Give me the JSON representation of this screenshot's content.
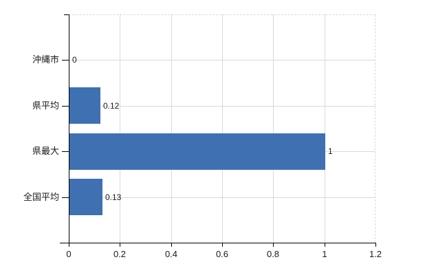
{
  "chart_data": {
    "type": "bar",
    "orientation": "horizontal",
    "title": "",
    "categories": [
      "沖縄市",
      "県平均",
      "県最大",
      "全国平均"
    ],
    "values": [
      0,
      0.12,
      1,
      0.13
    ],
    "value_labels": [
      "0",
      "0.12",
      "1",
      "0.13"
    ],
    "x_tick_labels": [
      "0",
      "0.2",
      "0.4",
      "0.6",
      "0.8",
      "1",
      "1.2"
    ],
    "x_tick_values": [
      0,
      0.2,
      0.4,
      0.6,
      0.8,
      1,
      1.2
    ],
    "xlim": [
      0,
      1.2
    ],
    "grid": true,
    "legend": false,
    "colors": {
      "bar": "#3e70b2",
      "grid": "#d9d9d9",
      "axis": "#000000",
      "text": "#1a1a1a"
    }
  }
}
